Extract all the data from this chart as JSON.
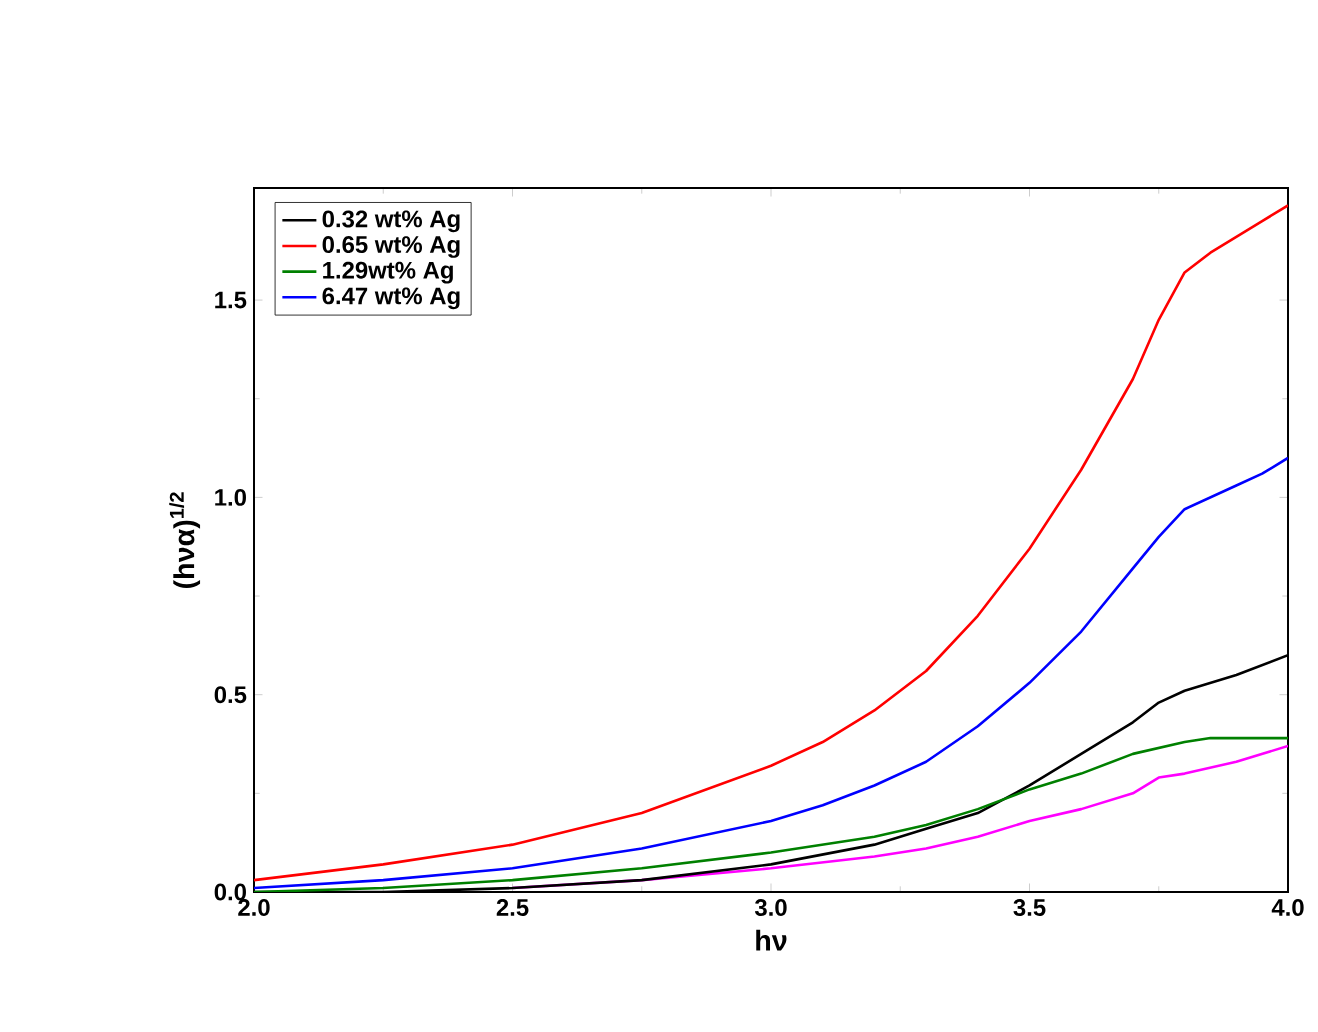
{
  "chart_data": {
    "type": "line",
    "xlabel": "hν",
    "ylabel": "(hνα)$^{1/2}$",
    "xlim": [
      2.0,
      4.0
    ],
    "ylim": [
      0,
      1.784
    ],
    "xticks": [
      {
        "value": 2.0,
        "label": "2.0"
      },
      {
        "value": 2.5,
        "label": "2.5"
      },
      {
        "value": 3.0,
        "label": "3.0"
      },
      {
        "value": 3.5,
        "label": "3.5"
      },
      {
        "value": 4.0,
        "label": "4.0"
      }
    ],
    "yticks": [
      {
        "value": 0,
        "label": "0.0"
      },
      {
        "value": 0.5,
        "label": "0.5"
      },
      {
        "value": 1.0,
        "label": "1.0"
      },
      {
        "value": 1.5,
        "label": "1.5"
      }
    ],
    "legend": "top left",
    "grid": false,
    "marker": "none",
    "line_style": "solid",
    "series": [
      {
        "color": "#ff00ff",
        "x": [
          2.5,
          2.75,
          3.0,
          3.2,
          3.3,
          3.4,
          3.5,
          3.6,
          3.7,
          3.75,
          3.8,
          3.9,
          4.0
        ],
        "values": [
          0.01,
          0.03,
          0.06,
          0.09,
          0.11,
          0.14,
          0.18,
          0.21,
          0.25,
          0.29,
          0.3,
          0.33,
          0.37
        ]
      },
      {
        "name": "0.32 wt% Ag",
        "color": "#000000",
        "x": [
          2.0,
          2.25,
          2.5,
          2.75,
          3.0,
          3.2,
          3.3,
          3.4,
          3.5,
          3.6,
          3.7,
          3.75,
          3.8,
          3.9,
          4.0
        ],
        "values": [
          0,
          0,
          0.01,
          0.03,
          0.07,
          0.12,
          0.16,
          0.2,
          0.27,
          0.35,
          0.43,
          0.48,
          0.51,
          0.55,
          0.6
        ]
      },
      {
        "name": "0.65 wt% Ag",
        "color": "#ff0000",
        "x": [
          2.0,
          2.25,
          2.5,
          2.75,
          3.0,
          3.1,
          3.2,
          3.3,
          3.4,
          3.5,
          3.6,
          3.7,
          3.75,
          3.8,
          3.85,
          3.9,
          3.95,
          4.0
        ],
        "values": [
          0.03,
          0.07,
          0.12,
          0.2,
          0.32,
          0.38,
          0.46,
          0.56,
          0.7,
          0.87,
          1.07,
          1.3,
          1.45,
          1.57,
          1.62,
          1.66,
          1.7,
          1.74
        ]
      },
      {
        "name": "1.29wt% Ag",
        "color": "#008000",
        "x": [
          2.0,
          2.25,
          2.5,
          2.75,
          3.0,
          3.2,
          3.3,
          3.4,
          3.5,
          3.6,
          3.7,
          3.8,
          3.85,
          4.0
        ],
        "values": [
          0,
          0.01,
          0.03,
          0.06,
          0.1,
          0.14,
          0.17,
          0.21,
          0.26,
          0.3,
          0.35,
          0.38,
          0.39,
          0.39
        ]
      },
      {
        "name": "6.47 wt% Ag",
        "color": "#0000ff",
        "x": [
          2.0,
          2.25,
          2.5,
          2.75,
          3.0,
          3.1,
          3.2,
          3.3,
          3.4,
          3.5,
          3.6,
          3.7,
          3.75,
          3.8,
          3.85,
          3.9,
          3.95,
          4.0
        ],
        "values": [
          0.01,
          0.03,
          0.06,
          0.11,
          0.18,
          0.22,
          0.27,
          0.33,
          0.42,
          0.53,
          0.66,
          0.82,
          0.9,
          0.97,
          1.0,
          1.03,
          1.06,
          1.1
        ]
      }
    ]
  }
}
